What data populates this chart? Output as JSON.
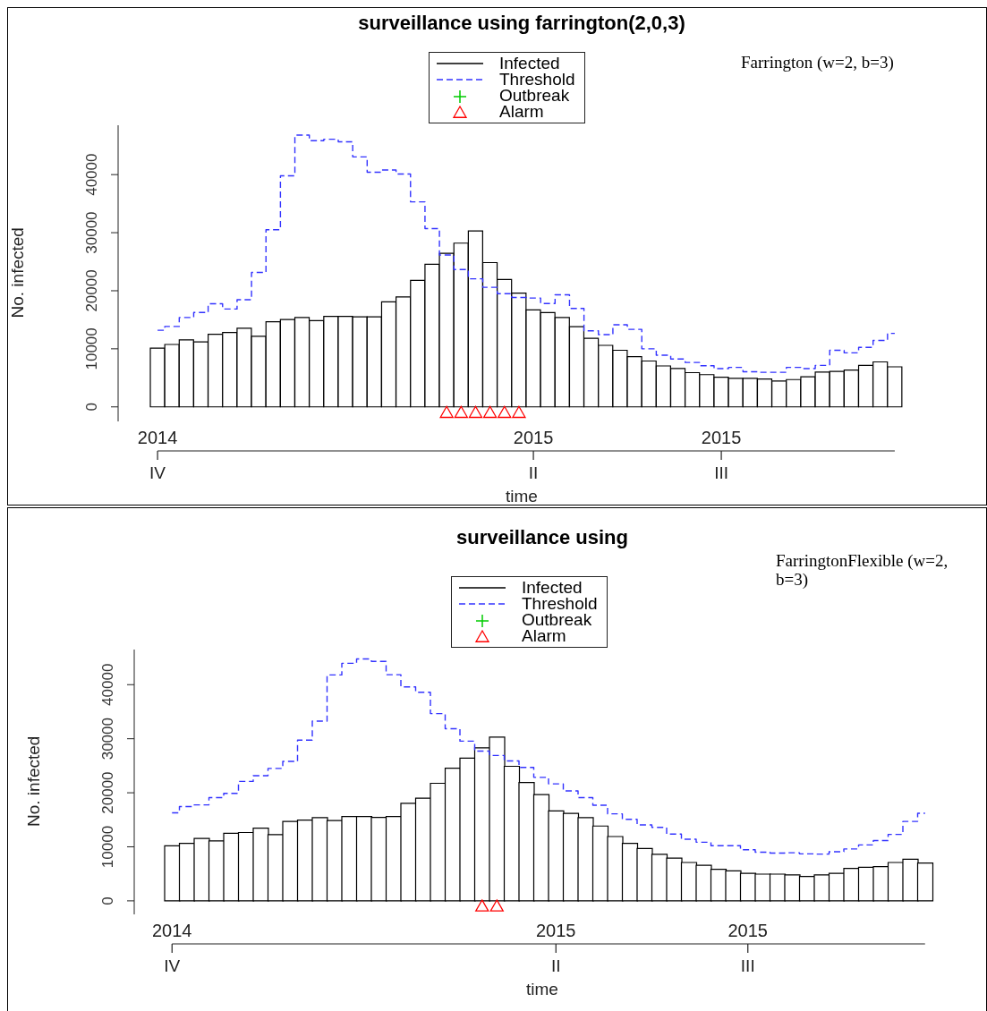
{
  "chart_data": [
    {
      "type": "bar",
      "title": "surveillance using farrington(2,0,3)",
      "xlabel": "time",
      "ylabel": "No. infected",
      "legend": "top",
      "grid": false,
      "annotations": [
        "Farrington (w=2, b=3)",
        "2014",
        "2015",
        "2015"
      ],
      "categories": [
        "IV",
        null,
        null,
        null,
        null,
        null,
        null,
        null,
        null,
        null,
        null,
        null,
        null,
        null,
        null,
        null,
        null,
        null,
        null,
        null,
        null,
        null,
        null,
        null,
        null,
        null,
        "II",
        null,
        null,
        null,
        null,
        null,
        null,
        null,
        null,
        null,
        null,
        null,
        null,
        "III",
        null,
        null,
        null,
        null,
        null,
        null,
        null,
        null,
        null,
        null,
        null,
        null
      ],
      "ylim": [
        -2500,
        48500
      ],
      "yticks": [
        0,
        10000,
        20000,
        30000,
        40000
      ],
      "series": [
        {
          "name": "Infected",
          "color": "#000000",
          "values": [
            10100,
            10750,
            11550,
            11200,
            12500,
            12800,
            13550,
            12150,
            14650,
            15050,
            15400,
            14850,
            15600,
            15600,
            15500,
            15500,
            18100,
            18950,
            21800,
            24550,
            26450,
            28200,
            30300,
            24850,
            21950,
            19600,
            16700,
            16250,
            15400,
            13800,
            11800,
            10600,
            9750,
            8650,
            7900,
            7050,
            6600,
            5900,
            5550,
            5100,
            4900,
            4900,
            4800,
            4450,
            4700,
            5200,
            6000,
            6100,
            6350,
            7150,
            7750,
            6900
          ]
        },
        {
          "name": "Threshold",
          "type": "step",
          "color": "#3333ff",
          "line_style": "dashed",
          "marker": "none",
          "values": [
            13200,
            13850,
            15400,
            16250,
            17750,
            16850,
            18450,
            23150,
            30500,
            39800,
            46800,
            45850,
            46100,
            45650,
            43050,
            40400,
            40800,
            40100,
            35300,
            30700,
            26150,
            23650,
            22050,
            20600,
            19500,
            18850,
            18750,
            17800,
            19300,
            16950,
            13100,
            12450,
            14150,
            13350,
            10000,
            8900,
            8250,
            7650,
            7100,
            6600,
            6800,
            6050,
            5950,
            5950,
            6800,
            6600,
            7150,
            9750,
            9300,
            10250,
            11450,
            12650
          ]
        },
        {
          "name": "Outbreak",
          "type": "scatter",
          "color": "#00cc00",
          "marker": "cross",
          "values": [
            null,
            null,
            null,
            null,
            null,
            null,
            null,
            null,
            null,
            null,
            null,
            null,
            null,
            null,
            null,
            null,
            null,
            null,
            null,
            null,
            null,
            null,
            null,
            null,
            null,
            null,
            null,
            null,
            null,
            null,
            null,
            null,
            null,
            null,
            null,
            null,
            null,
            null,
            null,
            null,
            null,
            null,
            null,
            null,
            null,
            null,
            null,
            null,
            null,
            null,
            null,
            null
          ]
        },
        {
          "name": "Alarm",
          "type": "scatter",
          "color": "#ff0000",
          "marker": "triangle",
          "values": [
            null,
            null,
            null,
            null,
            null,
            null,
            null,
            null,
            null,
            null,
            null,
            null,
            null,
            null,
            null,
            null,
            null,
            null,
            null,
            null,
            -1000,
            -1000,
            -1000,
            -1000,
            -1000,
            -1000,
            null,
            null,
            null,
            null,
            null,
            null,
            null,
            null,
            null,
            null,
            null,
            null,
            null,
            null,
            null,
            null,
            null,
            null,
            null,
            null,
            null,
            null,
            null,
            null,
            null,
            null
          ]
        }
      ]
    },
    {
      "type": "bar",
      "title": "surveillance using",
      "xlabel": "time",
      "ylabel": "No. infected",
      "legend": "top",
      "grid": false,
      "annotations": [
        "FarringtonFlexible (w=2, b=3)",
        "2014",
        "2015",
        "2015"
      ],
      "categories": [
        "IV",
        null,
        null,
        null,
        null,
        null,
        null,
        null,
        null,
        null,
        null,
        null,
        null,
        null,
        null,
        null,
        null,
        null,
        null,
        null,
        null,
        null,
        null,
        null,
        null,
        null,
        "II",
        null,
        null,
        null,
        null,
        null,
        null,
        null,
        null,
        null,
        null,
        null,
        null,
        "III",
        null,
        null,
        null,
        null,
        null,
        null,
        null,
        null,
        null,
        null,
        null,
        null
      ],
      "ylim": [
        -2500,
        46500
      ],
      "yticks": [
        0,
        10000,
        20000,
        30000,
        40000
      ],
      "series": [
        {
          "name": "Infected",
          "color": "#000000",
          "values": [
            10200,
            10650,
            11550,
            11100,
            12500,
            12650,
            13450,
            12250,
            14700,
            14950,
            15400,
            14850,
            15600,
            15600,
            15450,
            15600,
            18050,
            19000,
            21750,
            24550,
            26400,
            28300,
            30300,
            24900,
            21900,
            19650,
            16650,
            16200,
            15400,
            13850,
            11900,
            10650,
            9700,
            8600,
            7900,
            7100,
            6600,
            5850,
            5550,
            5100,
            4950,
            4950,
            4800,
            4500,
            4800,
            5100,
            6000,
            6200,
            6350,
            7100,
            7700,
            7000
          ]
        },
        {
          "name": "Threshold",
          "type": "step",
          "color": "#3333ff",
          "line_style": "dashed",
          "marker": "none",
          "values": [
            16300,
            17450,
            17750,
            19100,
            19900,
            22100,
            23150,
            24500,
            25800,
            29750,
            33250,
            41800,
            43950,
            44750,
            44300,
            41850,
            39600,
            38600,
            34650,
            31850,
            29550,
            27700,
            26900,
            25900,
            24700,
            22850,
            21650,
            20350,
            19100,
            17700,
            16100,
            15100,
            14050,
            13600,
            12350,
            11400,
            10850,
            10200,
            10200,
            9450,
            9000,
            8850,
            8900,
            8700,
            8650,
            9100,
            9600,
            10350,
            11150,
            12300,
            14700,
            16200
          ]
        },
        {
          "name": "Outbreak",
          "type": "scatter",
          "color": "#00cc00",
          "marker": "cross",
          "values": [
            null,
            null,
            null,
            null,
            null,
            null,
            null,
            null,
            null,
            null,
            null,
            null,
            null,
            null,
            null,
            null,
            null,
            null,
            null,
            null,
            null,
            null,
            null,
            null,
            null,
            null,
            null,
            null,
            null,
            null,
            null,
            null,
            null,
            null,
            null,
            null,
            null,
            null,
            null,
            null,
            null,
            null,
            null,
            null,
            null,
            null,
            null,
            null,
            null,
            null,
            null,
            null
          ]
        },
        {
          "name": "Alarm",
          "type": "scatter",
          "color": "#ff0000",
          "marker": "triangle",
          "values": [
            null,
            null,
            null,
            null,
            null,
            null,
            null,
            null,
            null,
            null,
            null,
            null,
            null,
            null,
            null,
            null,
            null,
            null,
            null,
            null,
            null,
            -1000,
            -1000,
            null,
            null,
            null,
            null,
            null,
            null,
            null,
            null,
            null,
            null,
            null,
            null,
            null,
            null,
            null,
            null,
            null,
            null,
            null,
            null,
            null,
            null,
            null,
            null,
            null,
            null,
            null,
            null,
            null
          ]
        }
      ]
    }
  ]
}
